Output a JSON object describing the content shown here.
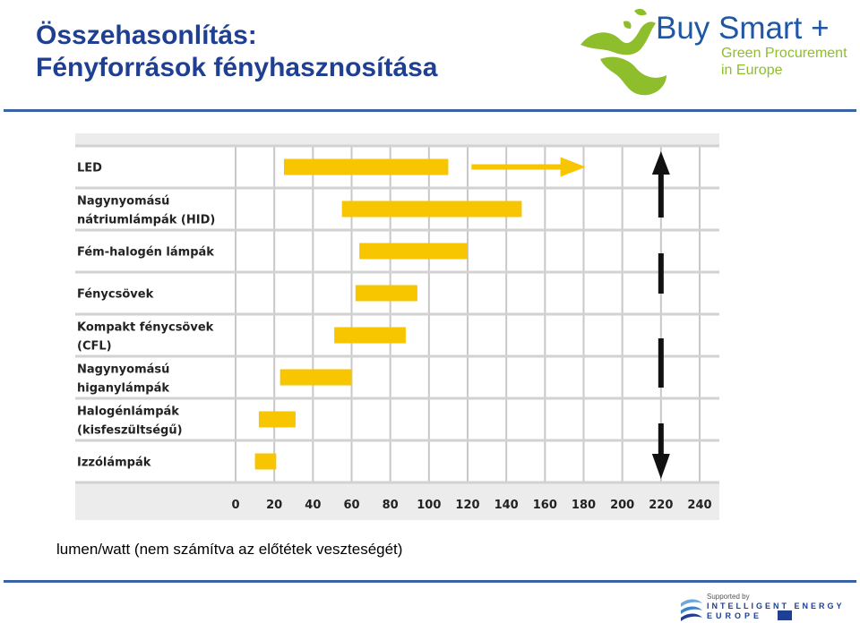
{
  "header": {
    "title_line1": "Összehasonlítás:",
    "title_line2": "Fényforrások fényhasznosítása"
  },
  "logo": {
    "brand": "Buy Smart +",
    "sub_line1": "Green Procurement",
    "sub_line2": "in Europe"
  },
  "colors": {
    "title": "#1f3f92",
    "bar": "#f7c600",
    "logo_green": "#8ebe2b",
    "rule": "#3a62a8"
  },
  "chart_data": {
    "type": "bar",
    "orientation": "horizontal",
    "xlabel": "lumen/watt (nem számítva az előtétek veszteségét)",
    "xlim": [
      0,
      240
    ],
    "xticks": [
      0,
      20,
      40,
      60,
      80,
      100,
      120,
      140,
      160,
      180,
      200,
      220,
      240
    ],
    "grid": true,
    "categories": [
      [
        "LED"
      ],
      [
        "Nagynyomású",
        "nátriumlámpák (HID)"
      ],
      [
        "Fém-halogén lámpák"
      ],
      [
        "Fénycsövek"
      ],
      [
        "Kompakt fénycsövek",
        "(CFL)"
      ],
      [
        "Nagynyomású",
        "higanylámpák"
      ],
      [
        "Halogénlámpák",
        "(kisfeszültségű)"
      ],
      [
        "Izzólámpák"
      ]
    ],
    "ranges": [
      [
        25,
        110
      ],
      [
        55,
        148
      ],
      [
        64,
        120
      ],
      [
        62,
        94
      ],
      [
        51,
        88
      ],
      [
        23,
        60
      ],
      [
        12,
        31
      ],
      [
        10,
        21
      ]
    ],
    "annotations": [
      "LED arrow indicating increase toward higher efficacy",
      "vertical double arrow at 220 spanning the range"
    ]
  },
  "caption": "lumen/watt (nem számítva az előtétek veszteségét)",
  "footer": {
    "supported_by": "Supported by",
    "program_line1": "INTELLIGENT ENERGY",
    "program_line2": "EUROPE"
  }
}
